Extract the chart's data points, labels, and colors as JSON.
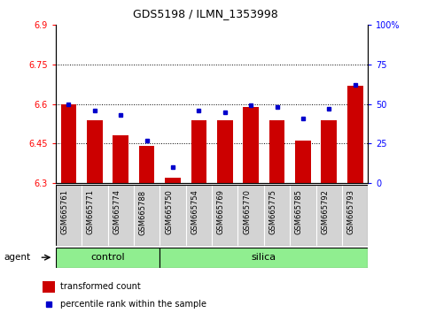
{
  "title": "GDS5198 / ILMN_1353998",
  "samples": [
    "GSM665761",
    "GSM665771",
    "GSM665774",
    "GSM665788",
    "GSM665750",
    "GSM665754",
    "GSM665769",
    "GSM665770",
    "GSM665775",
    "GSM665785",
    "GSM665792",
    "GSM665793"
  ],
  "groups": [
    "control",
    "control",
    "control",
    "control",
    "silica",
    "silica",
    "silica",
    "silica",
    "silica",
    "silica",
    "silica",
    "silica"
  ],
  "red_values": [
    6.6,
    6.54,
    6.48,
    6.44,
    6.32,
    6.54,
    6.54,
    6.59,
    6.54,
    6.46,
    6.54,
    6.67
  ],
  "blue_values": [
    50,
    46,
    43,
    27,
    10,
    46,
    45,
    49,
    48,
    41,
    47,
    62
  ],
  "ymin": 6.3,
  "ymax": 6.9,
  "yticks": [
    6.3,
    6.45,
    6.6,
    6.75,
    6.9
  ],
  "y2min": 0,
  "y2max": 100,
  "y2ticks": [
    0,
    25,
    50,
    75,
    100
  ],
  "bar_color": "#cc0000",
  "dot_color": "#0000cc",
  "control_color": "#90ee90",
  "silica_color": "#90ee90",
  "n_control": 4,
  "n_silica": 8,
  "agent_label": "agent",
  "control_label": "control",
  "silica_label": "silica",
  "legend_red": "transformed count",
  "legend_blue": "percentile rank within the sample",
  "grid_lines": [
    6.45,
    6.6,
    6.75
  ],
  "label_bg": "#d3d3d3"
}
